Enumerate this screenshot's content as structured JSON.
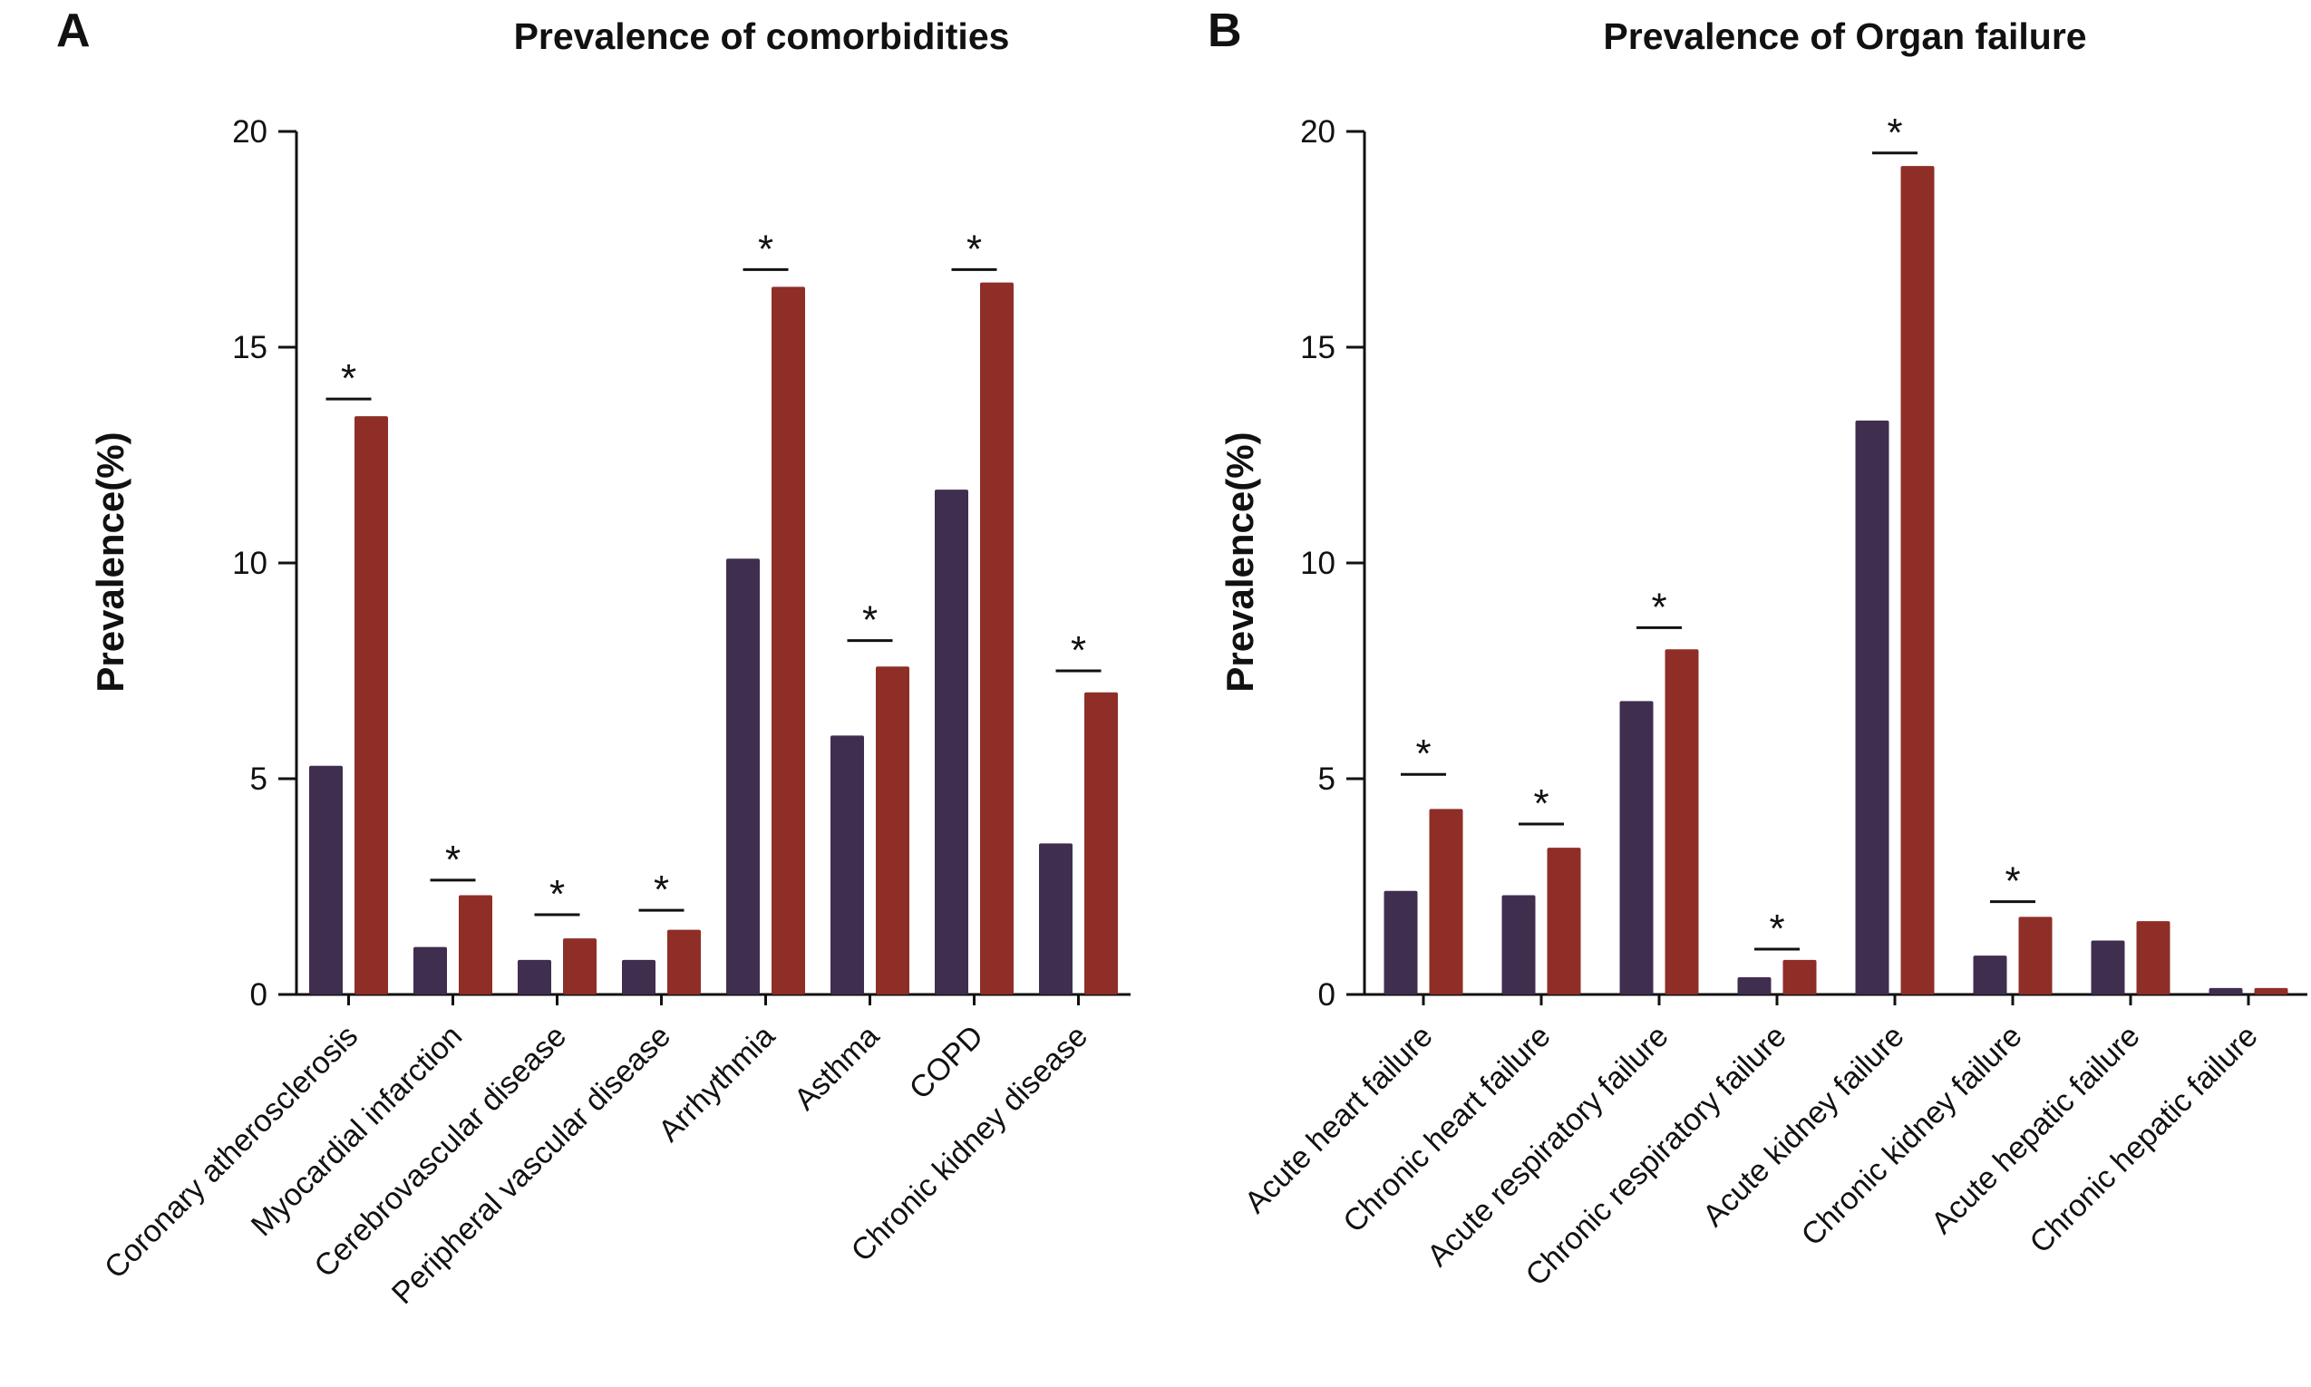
{
  "colors": {
    "background": "#ffffff",
    "ink": "#111111",
    "bar_purple": "#402e4f",
    "bar_red": "#8f2e27"
  },
  "chart_data": [
    {
      "type": "bar",
      "panel_label": "A",
      "title": "Prevalence of comorbidities",
      "ylabel": "Prevalence(%)",
      "ylim": [
        0,
        20
      ],
      "yticks": [
        0,
        5,
        10,
        15,
        20
      ],
      "grid": false,
      "legend": "none",
      "significance_symbol": "*",
      "categories": [
        "Coronary atherosclerosis",
        "Myocardial infarction",
        "Cerebrovascular disease",
        "Peripheral vascular disease",
        "Arrhythmia",
        "Asthma",
        "COPD",
        "Chronic kidney disease"
      ],
      "series": [
        {
          "name": "purple",
          "values": [
            5.3,
            1.1,
            0.8,
            0.8,
            10.1,
            6.0,
            11.7,
            3.5
          ]
        },
        {
          "name": "red",
          "values": [
            13.4,
            2.3,
            1.3,
            1.5,
            16.4,
            7.6,
            16.5,
            7.0
          ]
        }
      ],
      "significant": [
        true,
        true,
        true,
        true,
        true,
        true,
        true,
        true
      ],
      "sig_line_y": [
        13.8,
        2.65,
        1.85,
        1.95,
        16.8,
        8.2,
        16.8,
        7.5
      ]
    },
    {
      "type": "bar",
      "panel_label": "B",
      "title": "Prevalence of Organ failure",
      "ylabel": "Prevalence(%)",
      "ylim": [
        0,
        20
      ],
      "yticks": [
        0,
        5,
        10,
        15,
        20
      ],
      "grid": false,
      "legend": "none",
      "significance_symbol": "*",
      "categories": [
        "Acute heart failure",
        "Chronic heart failure",
        "Acute respiratory failure",
        "Chronic respiratory failure",
        "Acute kidney failure",
        "Chronic kidney failure",
        "Acute hepatic failure",
        "Chronic hepatic failure"
      ],
      "series": [
        {
          "name": "purple",
          "values": [
            2.4,
            2.3,
            6.8,
            0.4,
            13.3,
            0.9,
            1.25,
            0.15
          ]
        },
        {
          "name": "red",
          "values": [
            4.3,
            3.4,
            8.0,
            0.8,
            19.2,
            1.8,
            1.7,
            0.15
          ]
        }
      ],
      "significant": [
        true,
        true,
        true,
        true,
        true,
        true,
        false,
        false
      ],
      "sig_line_y": [
        5.1,
        3.95,
        8.5,
        1.05,
        19.5,
        2.15,
        null,
        null
      ]
    }
  ]
}
